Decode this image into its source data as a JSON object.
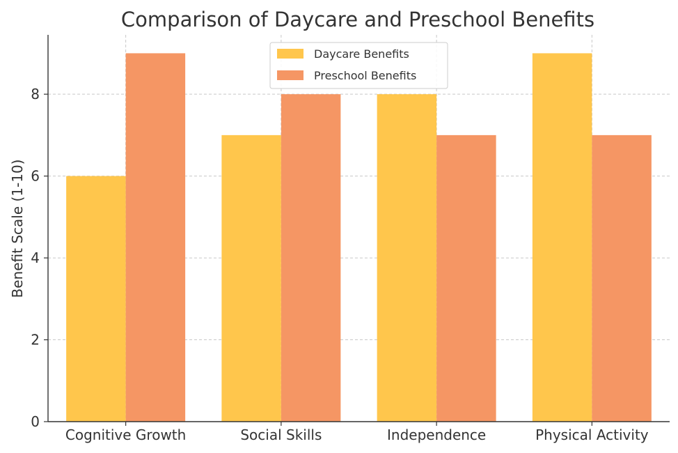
{
  "chart_data": {
    "type": "bar",
    "title": "Comparison of Daycare and Preschool Benefits",
    "xlabel": "",
    "ylabel": "Benefit Scale (1-10)",
    "categories": [
      "Cognitive Growth",
      "Social Skills",
      "Independence",
      "Physical Activity"
    ],
    "series": [
      {
        "name": "Daycare Benefits",
        "values": [
          6,
          7,
          8,
          9
        ],
        "color": "#FFC64C"
      },
      {
        "name": "Preschool Benefits",
        "values": [
          9,
          8,
          7,
          7
        ],
        "color": "#F59664"
      }
    ],
    "ylim": [
      0,
      9.45
    ],
    "yticks": [
      0,
      2,
      4,
      6,
      8
    ],
    "grid": true,
    "legend_position": "top-center"
  }
}
